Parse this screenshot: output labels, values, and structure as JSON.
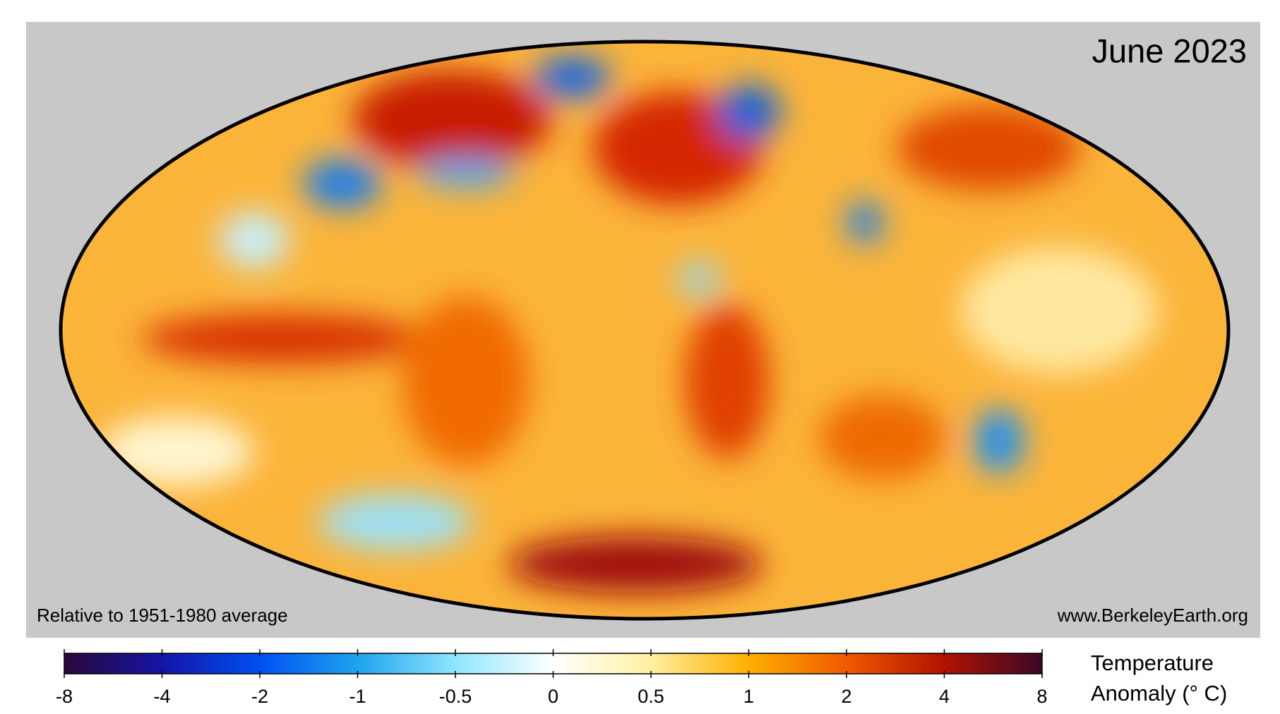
{
  "title": "June 2023",
  "note": "Relative to 1951-1980 average",
  "source": "www.BerkeleyEarth.org",
  "colorbar": {
    "ticks": [
      -8,
      -4,
      -2,
      -1,
      -0.5,
      0,
      0.5,
      1,
      2,
      4,
      8
    ],
    "colors": [
      "#2a0838",
      "#1414a8",
      "#0050f0",
      "#1ea4ee",
      "#8ee6ff",
      "#ffffff",
      "#fff0a0",
      "#ffb000",
      "#f05a00",
      "#b01200",
      "#3c0828"
    ],
    "label": [
      "Temperature",
      "Anomaly (° C)"
    ]
  }
}
